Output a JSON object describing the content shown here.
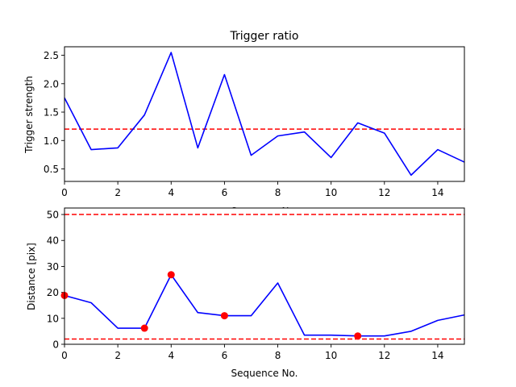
{
  "chart_data": [
    {
      "type": "line",
      "title": "Trigger ratio",
      "xlabel": "Sequence No.",
      "ylabel": "Trigger strength",
      "xlim": [
        0,
        15
      ],
      "ylim": [
        0.28,
        2.65
      ],
      "xticks": [
        "0",
        "2",
        "4",
        "6",
        "8",
        "10",
        "12",
        "14"
      ],
      "yticks": [
        "0.5",
        "1.0",
        "1.5",
        "2.0",
        "2.5"
      ],
      "grid": false,
      "series": [
        {
          "color": "#0000ff",
          "style": "solid",
          "x": [
            0,
            1,
            2,
            3,
            4,
            5,
            6,
            7,
            8,
            9,
            10,
            11,
            12,
            13,
            14,
            15
          ],
          "y": [
            1.75,
            0.84,
            0.87,
            1.45,
            2.55,
            0.87,
            2.16,
            0.74,
            1.08,
            1.15,
            0.7,
            1.31,
            1.13,
            0.39,
            0.84,
            0.62
          ]
        }
      ],
      "hlines": [
        {
          "y": 1.2,
          "color": "#ff0000",
          "style": "dashed"
        }
      ]
    },
    {
      "type": "line",
      "title": "",
      "xlabel": "Sequence No.",
      "ylabel": "Distance [pix]",
      "xlim": [
        0,
        15
      ],
      "ylim": [
        0,
        52.5
      ],
      "xticks": [
        "0",
        "2",
        "4",
        "6",
        "8",
        "10",
        "12",
        "14"
      ],
      "yticks": [
        "0",
        "10",
        "20",
        "30",
        "40",
        "50"
      ],
      "grid": false,
      "series": [
        {
          "color": "#0000ff",
          "style": "solid",
          "x": [
            0,
            1,
            2,
            3,
            4,
            5,
            6,
            7,
            8,
            9,
            10,
            11,
            12,
            13,
            14,
            15
          ],
          "y": [
            18.8,
            16.0,
            6.2,
            6.2,
            26.8,
            12.2,
            11.0,
            11.0,
            23.6,
            3.5,
            3.5,
            3.2,
            3.2,
            5.0,
            9.2,
            11.3
          ]
        }
      ],
      "markers": {
        "color": "#ff0000",
        "x": [
          0,
          3,
          4,
          6,
          11
        ],
        "y": [
          18.8,
          6.2,
          26.8,
          11.0,
          3.2
        ]
      },
      "hlines": [
        {
          "y": 50,
          "color": "#ff0000",
          "style": "dashed"
        },
        {
          "y": 2,
          "color": "#ff0000",
          "style": "dashed"
        }
      ]
    }
  ]
}
